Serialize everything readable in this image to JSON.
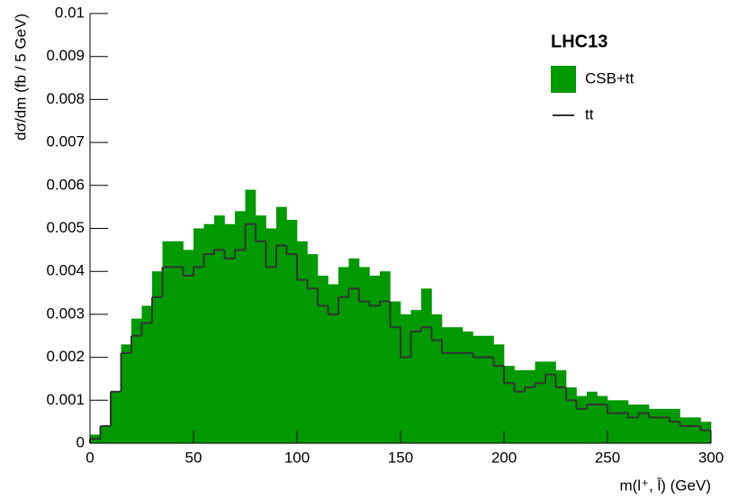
{
  "chart_data": {
    "type": "histogram",
    "legend_title": "LHC13",
    "x_label": "m(l⁺, l̄) (GeV)",
    "y_label": "dσ/dm (fb / 5 GeV)",
    "bins": [
      0,
      5,
      10,
      15,
      20,
      25,
      30,
      35,
      40,
      45,
      50,
      55,
      60,
      65,
      70,
      75,
      80,
      85,
      90,
      95,
      100,
      105,
      110,
      115,
      120,
      125,
      130,
      135,
      140,
      145,
      150,
      155,
      160,
      165,
      170,
      175,
      180,
      185,
      190,
      195,
      200,
      205,
      210,
      215,
      220,
      225,
      230,
      235,
      240,
      245,
      250,
      255,
      260,
      265,
      270,
      275,
      280,
      285,
      290,
      295,
      300
    ],
    "series": [
      {
        "name": "CSB+tt",
        "color": "#009900",
        "style": "fill",
        "values": [
          0.0002,
          0.0004,
          0.0012,
          0.0023,
          0.0029,
          0.0032,
          0.004,
          0.0047,
          0.0047,
          0.0045,
          0.005,
          0.0051,
          0.0053,
          0.0051,
          0.0054,
          0.0059,
          0.0053,
          0.005,
          0.0055,
          0.0052,
          0.0047,
          0.0044,
          0.0039,
          0.0037,
          0.0041,
          0.0043,
          0.0041,
          0.0039,
          0.004,
          0.0033,
          0.003,
          0.0031,
          0.0036,
          0.003,
          0.0027,
          0.0027,
          0.0026,
          0.0025,
          0.0025,
          0.0023,
          0.0018,
          0.0017,
          0.0017,
          0.0019,
          0.0019,
          0.0017,
          0.0013,
          0.0011,
          0.0012,
          0.0011,
          0.001,
          0.001,
          0.0009,
          0.0009,
          0.0008,
          0.0008,
          0.0008,
          0.0006,
          0.0006,
          0.0005
        ]
      },
      {
        "name": "tt",
        "color": "#333333",
        "style": "step",
        "values": [
          0.0001,
          0.0004,
          0.0012,
          0.0021,
          0.0025,
          0.0028,
          0.0034,
          0.0041,
          0.0041,
          0.0039,
          0.0041,
          0.0044,
          0.0045,
          0.0043,
          0.0045,
          0.0051,
          0.0047,
          0.0041,
          0.0046,
          0.0044,
          0.0038,
          0.0036,
          0.0032,
          0.003,
          0.0034,
          0.0036,
          0.0033,
          0.0032,
          0.0033,
          0.0027,
          0.002,
          0.0026,
          0.0027,
          0.0024,
          0.0021,
          0.0021,
          0.0021,
          0.002,
          0.002,
          0.0018,
          0.0014,
          0.0012,
          0.0013,
          0.0014,
          0.0016,
          0.0013,
          0.001,
          0.0008,
          0.0009,
          0.0009,
          0.0007,
          0.0007,
          0.0006,
          0.0007,
          0.0006,
          0.0006,
          0.0005,
          0.0004,
          0.0004,
          0.0003
        ]
      }
    ],
    "xlim": [
      0,
      300
    ],
    "xticks": [
      0,
      50,
      100,
      150,
      200,
      250,
      300
    ],
    "ylim": [
      0,
      0.01
    ],
    "yticks": [
      0,
      0.001,
      0.002,
      0.003,
      0.004,
      0.005,
      0.006,
      0.007,
      0.008,
      0.009,
      0.01
    ],
    "grid": false
  }
}
